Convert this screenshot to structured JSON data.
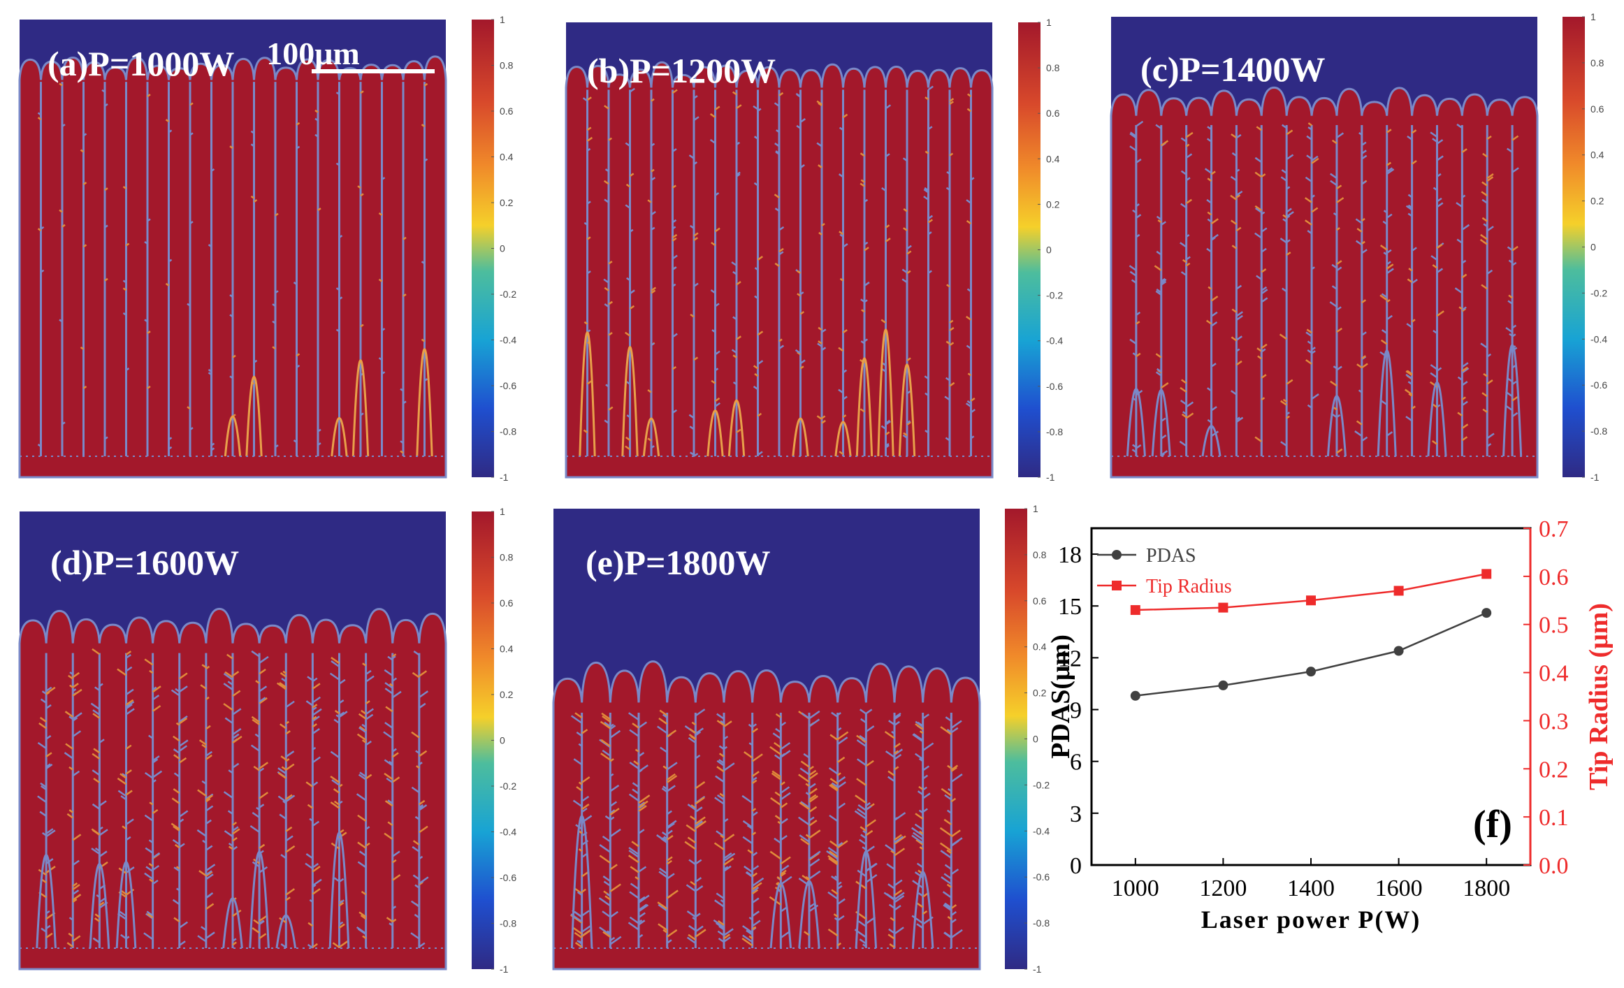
{
  "figure": {
    "panels": [
      {
        "label": "(a)P=1000W",
        "power": 1000,
        "front_level": 0.12,
        "front_amp": 0.04,
        "n_dendrites": 20
      },
      {
        "label": "(b)P=1200W",
        "power": 1200,
        "front_level": 0.13,
        "front_amp": 0.045,
        "n_dendrites": 20
      },
      {
        "label": "(c)P=1400W",
        "power": 1400,
        "front_level": 0.2,
        "front_amp": 0.05,
        "n_dendrites": 17
      },
      {
        "label": "(d)P=1600W",
        "power": 1600,
        "front_level": 0.27,
        "front_amp": 0.06,
        "n_dendrites": 16
      },
      {
        "label": "(e)P=1800W",
        "power": 1800,
        "front_level": 0.4,
        "front_amp": 0.07,
        "n_dendrites": 15
      }
    ],
    "scale_bar_label": "100μm",
    "colorbar_ticks": [
      "1",
      "0.8",
      "0.6",
      "0.4",
      "0.2",
      "0",
      "-0.2",
      "-0.4",
      "-0.6",
      "-0.8",
      "-1"
    ],
    "colors": {
      "solid": "#a3182b",
      "liquid": "#2f2a84",
      "interface": "#7a89c8",
      "black_series": "#404040",
      "red_series": "#ee2b2b"
    }
  },
  "chart_data": {
    "type": "line",
    "panel_label": "(f)",
    "xlabel": "Laser power P(W)",
    "ylabel": "PDAS(μm)",
    "y2label": "Tip Radius (μm)",
    "x": [
      1000,
      1200,
      1400,
      1600,
      1800
    ],
    "xlim": [
      900,
      1900
    ],
    "xticks": [
      "1000",
      "1200",
      "1400",
      "1600",
      "1800"
    ],
    "ylim": [
      0,
      19.5
    ],
    "yticks": [
      "0",
      "3",
      "6",
      "9",
      "12",
      "15",
      "18"
    ],
    "y2lim": [
      0,
      0.7
    ],
    "y2ticks": [
      "0.0",
      "0.1",
      "0.2",
      "0.3",
      "0.4",
      "0.5",
      "0.6",
      "0.7"
    ],
    "series": [
      {
        "name": "PDAS",
        "axis": "left",
        "color": "#404040",
        "marker": "circle",
        "values": [
          9.8,
          10.4,
          11.2,
          12.4,
          14.6
        ]
      },
      {
        "name": "Tip Radius",
        "axis": "right",
        "color": "#ee2b2b",
        "marker": "square",
        "values": [
          0.53,
          0.535,
          0.55,
          0.57,
          0.605
        ]
      }
    ],
    "legend_position": "top-left",
    "grid": false
  }
}
